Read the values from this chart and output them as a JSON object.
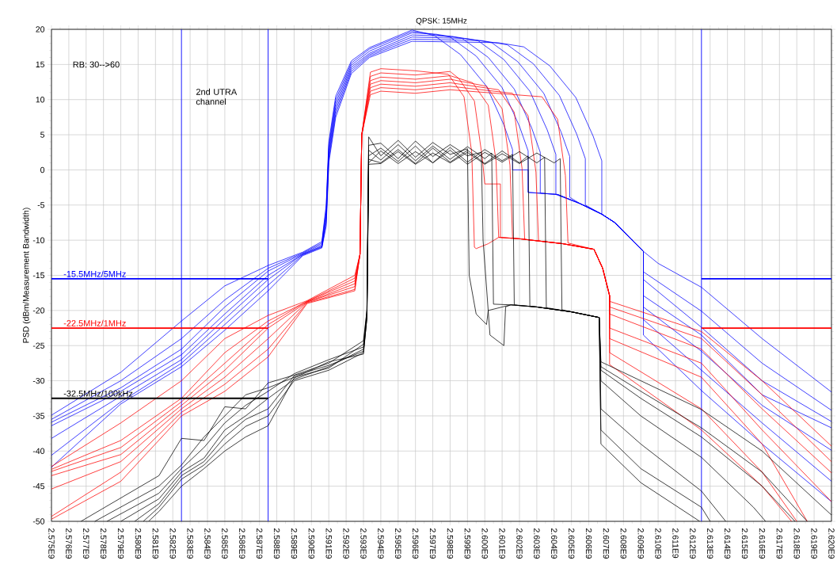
{
  "chart_data": {
    "type": "line",
    "title": "QPSK: 15MHz",
    "ylabel": "PSD (dBm/Measurement Bandwidth)",
    "annotations": [
      "RB: 30-->60",
      "2nd UTRA channel"
    ],
    "xlim": [
      2575000000,
      2620000000
    ],
    "ylim": [
      -50,
      20
    ],
    "xticks": [
      {
        "value": 2575000000,
        "label": "2.575E9"
      },
      {
        "value": 2576000000,
        "label": "2.576E9"
      },
      {
        "value": 2577000000,
        "label": "2.577E9"
      },
      {
        "value": 2578000000,
        "label": "2.578E9"
      },
      {
        "value": 2579000000,
        "label": "2.579E9"
      },
      {
        "value": 2580000000,
        "label": "2.580E9"
      },
      {
        "value": 2581000000,
        "label": "2.581E9"
      },
      {
        "value": 2582000000,
        "label": "2.582E9"
      },
      {
        "value": 2583000000,
        "label": "2.583E9"
      },
      {
        "value": 2584000000,
        "label": "2.584E9"
      },
      {
        "value": 2585000000,
        "label": "2.585E9"
      },
      {
        "value": 2586000000,
        "label": "2.586E9"
      },
      {
        "value": 2587000000,
        "label": "2.587E9"
      },
      {
        "value": 2588000000,
        "label": "2.588E9"
      },
      {
        "value": 2589000000,
        "label": "2.589E9"
      },
      {
        "value": 2590000000,
        "label": "2.590E9"
      },
      {
        "value": 2591000000,
        "label": "2.591E9"
      },
      {
        "value": 2592000000,
        "label": "2.592E9"
      },
      {
        "value": 2593000000,
        "label": "2.593E9"
      },
      {
        "value": 2594000000,
        "label": "2.594E9"
      },
      {
        "value": 2595000000,
        "label": "2.595E9"
      },
      {
        "value": 2596000000,
        "label": "2.596E9"
      },
      {
        "value": 2597000000,
        "label": "2.597E9"
      },
      {
        "value": 2598000000,
        "label": "2.598E9"
      },
      {
        "value": 2599000000,
        "label": "2.599E9"
      },
      {
        "value": 2600000000,
        "label": "2.600E9"
      },
      {
        "value": 2601000000,
        "label": "2.601E9"
      },
      {
        "value": 2602000000,
        "label": "2.602E9"
      },
      {
        "value": 2603000000,
        "label": "2.603E9"
      },
      {
        "value": 2604000000,
        "label": "2.604E9"
      },
      {
        "value": 2605000000,
        "label": "2.605E9"
      },
      {
        "value": 2606000000,
        "label": "2.606E9"
      },
      {
        "value": 2607000000,
        "label": "2.607E9"
      },
      {
        "value": 2608000000,
        "label": "2.608E9"
      },
      {
        "value": 2609000000,
        "label": "2.609E9"
      },
      {
        "value": 2610000000,
        "label": "2.610E9"
      },
      {
        "value": 2611000000,
        "label": "2.611E9"
      },
      {
        "value": 2612000000,
        "label": "2.612E9"
      },
      {
        "value": 2613000000,
        "label": "2.613E9"
      },
      {
        "value": 2614000000,
        "label": "2.614E9"
      },
      {
        "value": 2615000000,
        "label": "2.615E9"
      },
      {
        "value": 2616000000,
        "label": "2.616E9"
      },
      {
        "value": 2617000000,
        "label": "2.617E9"
      },
      {
        "value": 2618000000,
        "label": "2.618E9"
      },
      {
        "value": 2619000000,
        "label": "2.619E9"
      },
      {
        "value": 2620000000,
        "label": "2.620E9"
      }
    ],
    "yticks": [
      -50,
      -45,
      -40,
      -35,
      -30,
      -25,
      -20,
      -15,
      -10,
      -5,
      0,
      5,
      10,
      15,
      20
    ],
    "grid": true,
    "ref_lines": [
      {
        "axis": "x",
        "value": 2582500000,
        "color": "#0000ff"
      },
      {
        "axis": "x",
        "value": 2587500000,
        "color": "#0000ff"
      },
      {
        "axis": "x",
        "value": 2612500000,
        "color": "#0000ff"
      }
    ],
    "series": [
      {
        "color": "#0000ff",
        "x": [
          2575000000,
          2579000000,
          2582500000,
          2585000000,
          2587500000,
          2589500000,
          2590600000,
          2590850000,
          2591000000,
          2591400000,
          2592300000,
          2593350000,
          2595800000,
          2597100000,
          2598600000,
          2600100000,
          2601100000,
          2601600000,
          2601600000,
          2602500000,
          2602500000,
          2604200000,
          2605500000,
          2606750000,
          2607500000,
          2608500000,
          2609150000,
          2610000000,
          2612500000,
          2616000000,
          2620000000
        ],
        "values": [
          -34.9,
          -28.8,
          -21.5,
          -16.5,
          -13.6,
          -11.7,
          -10.2,
          -5,
          4,
          10.5,
          15.5,
          17.4,
          19.9,
          19.1,
          16.4,
          11.9,
          6.4,
          2.9,
          0,
          0,
          -3.2,
          -3.5,
          -4.8,
          -6.3,
          -7.5,
          -10,
          -11.6,
          -13.3,
          -16.7,
          -24,
          -31.6
        ]
      },
      {
        "color": "#0000ff",
        "x": [
          2575000000,
          2579000000,
          2582500000,
          2585000000,
          2587500000,
          2589500000,
          2590600000,
          2590850000,
          2591000000,
          2591400000,
          2592300000,
          2593350000,
          2595800000,
          2596500000,
          2598000000,
          2599500000,
          2601000000,
          2602000000,
          2602500000,
          2602500000,
          2604200000,
          2605500000,
          2606750000,
          2607500000,
          2608500000,
          2609150000,
          2609150000,
          2612500000,
          2616000000,
          2620000000
        ],
        "values": [
          -35.5,
          -30,
          -24,
          -18.5,
          -14,
          -11.8,
          -10.4,
          -5.5,
          3.5,
          10,
          15.2,
          17.2,
          19.7,
          19.5,
          18.9,
          16.2,
          11.7,
          6.2,
          2.7,
          -3.2,
          -3.5,
          -4.8,
          -6.3,
          -7.5,
          -10,
          -11.6,
          -14.5,
          -20.1,
          -27.5,
          -34.2
        ]
      },
      {
        "color": "#0000ff",
        "x": [
          2575000000,
          2579000000,
          2582500000,
          2585000000,
          2587500000,
          2589500000,
          2590600000,
          2590850000,
          2591000000,
          2591400000,
          2592300000,
          2593350000,
          2595800000,
          2597200000,
          2598700000,
          2600200000,
          2601700000,
          2602700000,
          2603200000,
          2603200000,
          2604200000,
          2605500000,
          2606750000,
          2607500000,
          2608500000,
          2609150000,
          2609150000,
          2612500000,
          2616000000,
          2620000000
        ],
        "values": [
          -35.9,
          -31,
          -25.5,
          -19.5,
          -14.4,
          -11.9,
          -10.6,
          -6,
          3,
          9.5,
          14.9,
          16.9,
          19.5,
          19.3,
          18.7,
          16,
          11.5,
          6,
          2.5,
          -3.3,
          -3.5,
          -4.8,
          -6.3,
          -7.5,
          -10,
          -11.6,
          -15.6,
          -22.4,
          -30,
          -35.8
        ]
      },
      {
        "color": "#0000ff",
        "x": [
          2575000000,
          2579000000,
          2582500000,
          2585000000,
          2587500000,
          2589500000,
          2590600000,
          2590850000,
          2591000000,
          2591400000,
          2592300000,
          2593350000,
          2595800000,
          2598100000,
          2599600000,
          2601100000,
          2602600000,
          2603600000,
          2604100000,
          2604100000,
          2605500000,
          2606750000,
          2607500000,
          2608500000,
          2609150000,
          2609150000,
          2612500000,
          2616000000,
          2620000000
        ],
        "values": [
          -36.4,
          -31.5,
          -26.3,
          -20.5,
          -15,
          -12,
          -10.8,
          -6.5,
          2.5,
          9,
          14.6,
          16.6,
          19.2,
          19,
          18.4,
          15.7,
          11.2,
          5.7,
          2.2,
          -3.5,
          -4.8,
          -6.3,
          -7.5,
          -10,
          -11.6,
          -17.9,
          -23.5,
          -32,
          -36.7
        ]
      },
      {
        "color": "#0000ff",
        "x": [
          2575000000,
          2579000000,
          2582500000,
          2585000000,
          2587500000,
          2589500000,
          2590600000,
          2590850000,
          2591000000,
          2591400000,
          2592300000,
          2593350000,
          2595800000,
          2598900000,
          2600400000,
          2601900000,
          2603400000,
          2604400000,
          2604900000,
          2604900000,
          2605500000,
          2606750000,
          2607500000,
          2608500000,
          2609150000,
          2609150000,
          2612500000,
          2616000000,
          2620000000
        ],
        "values": [
          -38.2,
          -32.2,
          -27,
          -21.2,
          -15.6,
          -12,
          -10.9,
          -7,
          2,
          8.5,
          14.3,
          16.4,
          18.9,
          18.7,
          18.1,
          15.4,
          10.9,
          5.4,
          1.9,
          -3.9,
          -4.8,
          -6.3,
          -7.5,
          -10,
          -11.6,
          -19.5,
          -25.8,
          -33.5,
          -39.9
        ]
      },
      {
        "color": "#0000ff",
        "x": [
          2575000000,
          2579000000,
          2582500000,
          2585000000,
          2587500000,
          2589500000,
          2590600000,
          2590850000,
          2591000000,
          2591400000,
          2592300000,
          2593350000,
          2595800000,
          2599800000,
          2601300000,
          2602800000,
          2604300000,
          2605300000,
          2605800000,
          2605800000,
          2606750000,
          2607500000,
          2608500000,
          2609150000,
          2609150000,
          2612500000,
          2616000000,
          2620000000
        ],
        "values": [
          -40.6,
          -33,
          -27.5,
          -22,
          -16.4,
          -12.1,
          -11,
          -7.5,
          1.5,
          8,
          14,
          16.2,
          18.6,
          18.4,
          17.8,
          15.1,
          10.6,
          5.1,
          1.6,
          -5,
          -6.3,
          -7.5,
          -10,
          -11.6,
          -21.3,
          -28.5,
          -36,
          -44.3
        ]
      },
      {
        "color": "#0000ff",
        "x": [
          2575000000,
          2579000000,
          2582500000,
          2585000000,
          2587500000,
          2589500000,
          2590600000,
          2590850000,
          2591000000,
          2591400000,
          2592300000,
          2593350000,
          2595800000,
          2600750000,
          2602250000,
          2603750000,
          2605250000,
          2606250000,
          2606750000,
          2606750000,
          2607500000,
          2608500000,
          2609150000,
          2609150000,
          2612500000,
          2616000000,
          2620000000
        ],
        "values": [
          -42.3,
          -33.3,
          -28,
          -22.8,
          -17.2,
          -12.2,
          -11.1,
          -8,
          1,
          7.5,
          13.7,
          16,
          18.3,
          18.1,
          17.5,
          14.8,
          10.3,
          4.8,
          1.3,
          -6.3,
          -7.5,
          -10,
          -11.6,
          -23.5,
          -31.4,
          -39,
          -47.2
        ]
      },
      {
        "color": "#ff0000",
        "x": [
          2575000000,
          2579000000,
          2582500000,
          2585000000,
          2587500000,
          2589750000,
          2592500000,
          2592800000,
          2592900000,
          2593400000,
          2594000000,
          2596000000,
          2597900000,
          2598800000,
          2599250000,
          2599400000,
          2599500000,
          2600200000,
          2600800000,
          2602000000,
          2604500000,
          2606300000,
          2606800000,
          2607200000,
          2607200000,
          2612500000,
          2616000000,
          2620000000
        ],
        "values": [
          -42.2,
          -36,
          -30,
          -24,
          -20.7,
          -18.6,
          -15,
          -12,
          5,
          13.9,
          14.4,
          14.1,
          13.6,
          10.4,
          2.4,
          -11,
          -11.2,
          -10.5,
          -9.6,
          -9.8,
          -10.5,
          -11.3,
          -14,
          -17.9,
          -18.7,
          -23,
          -30,
          -39.3
        ]
      },
      {
        "color": "#ff0000",
        "x": [
          2575000000,
          2579000000,
          2582500000,
          2585000000,
          2587500000,
          2589750000,
          2592500000,
          2592800000,
          2592900000,
          2593400000,
          2594000000,
          2596000000,
          2598000000,
          2598500000,
          2599400000,
          2599850000,
          2600000000,
          2600900000,
          2600900000,
          2602000000,
          2604500000,
          2606300000,
          2606800000,
          2607200000,
          2607200000,
          2612500000,
          2616000000,
          2620000000
        ],
        "values": [
          -42.6,
          -38.5,
          -32.5,
          -26,
          -21.5,
          -18.7,
          -15.4,
          -12,
          5,
          13.3,
          13.8,
          13.5,
          14,
          13,
          9.8,
          1.8,
          -2,
          -2,
          -9.6,
          -9.8,
          -10.5,
          -11.3,
          -14,
          -17.9,
          -19.5,
          -24,
          -32,
          -41.5
        ]
      },
      {
        "color": "#ff0000",
        "x": [
          2575000000,
          2579000000,
          2582500000,
          2585000000,
          2587500000,
          2589750000,
          2592500000,
          2592800000,
          2592900000,
          2593400000,
          2594000000,
          2596000000,
          2598000000,
          2599300000,
          2600200000,
          2600650000,
          2600800000,
          2602000000,
          2604500000,
          2606300000,
          2606800000,
          2607200000,
          2607200000,
          2612500000,
          2616000000,
          2620000000
        ],
        "values": [
          -42.9,
          -39.5,
          -33,
          -27.5,
          -22,
          -18.7,
          -15.8,
          -12,
          5,
          12.7,
          13.2,
          12.9,
          13.4,
          12.4,
          9.2,
          1.2,
          -9.6,
          -9.8,
          -10.5,
          -11.3,
          -14,
          -17.9,
          -20.5,
          -25.5,
          -34,
          -43.1
        ]
      },
      {
        "color": "#ff0000",
        "x": [
          2575000000,
          2579000000,
          2582500000,
          2585000000,
          2587500000,
          2589750000,
          2592500000,
          2592800000,
          2592900000,
          2593400000,
          2594000000,
          2596000000,
          2598000000,
          2600100000,
          2601000000,
          2601450000,
          2601600000,
          2602000000,
          2604500000,
          2606300000,
          2606800000,
          2607200000,
          2607200000,
          2612500000,
          2616000000,
          2620000000
        ],
        "values": [
          -43.5,
          -40.5,
          -33.5,
          -28.5,
          -22.5,
          -18.8,
          -16.2,
          -12,
          5,
          12.2,
          12.7,
          12.4,
          12.9,
          11.9,
          8.7,
          0.7,
          -9.7,
          -9.8,
          -10.5,
          -11.3,
          -14,
          -17.9,
          -22.5,
          -27.5,
          -37,
          -47.2
        ]
      },
      {
        "color": "#ff0000",
        "x": [
          2575000000,
          2579000000,
          2582500000,
          2585000000,
          2587500000,
          2589750000,
          2592500000,
          2592800000,
          2592900000,
          2593400000,
          2594000000,
          2596000000,
          2598000000,
          2600800000,
          2601700000,
          2602150000,
          2602300000,
          2604500000,
          2606300000,
          2606800000,
          2607200000,
          2607200000,
          2612500000,
          2616000000,
          2618600000
        ],
        "values": [
          -45.4,
          -41.5,
          -34,
          -29.5,
          -24,
          -18.8,
          -16.6,
          -12,
          5,
          11.7,
          12.2,
          11.9,
          12.4,
          11.4,
          8.2,
          0.2,
          -9.9,
          -10.5,
          -11.3,
          -14,
          -17.9,
          -24,
          -29.5,
          -39,
          -50
        ]
      },
      {
        "color": "#ff0000",
        "x": [
          2575000000,
          2579000000,
          2582500000,
          2585000000,
          2587500000,
          2589750000,
          2592500000,
          2592800000,
          2592900000,
          2593400000,
          2594000000,
          2596000000,
          2598000000,
          2601600000,
          2602500000,
          2602950000,
          2603100000,
          2604500000,
          2606300000,
          2606800000,
          2607200000,
          2607200000,
          2612500000,
          2616000000,
          2618000000
        ],
        "values": [
          -49.3,
          -43,
          -34.5,
          -30.5,
          -25.5,
          -18.9,
          -17,
          -12,
          5,
          11.2,
          11.7,
          11.4,
          11.9,
          10.9,
          7.7,
          -0.3,
          -10.1,
          -10.5,
          -11.3,
          -14,
          -17.9,
          -26,
          -34,
          -43,
          -50
        ]
      },
      {
        "color": "#ff0000",
        "x": [
          2575000000,
          2579000000,
          2582500000,
          2585000000,
          2587500000,
          2589750000,
          2592500000,
          2592800000,
          2592900000,
          2593400000,
          2594000000,
          2596000000,
          2598000000,
          2603300000,
          2604200000,
          2604650000,
          2604800000,
          2606300000,
          2606800000,
          2607200000,
          2607200000,
          2612500000,
          2616000000,
          2617700000
        ],
        "values": [
          -49.7,
          -44.3,
          -35,
          -31.5,
          -26.6,
          -19,
          -17.2,
          -12,
          5,
          10.7,
          11.2,
          10.9,
          11.4,
          10.4,
          7.2,
          -0.8,
          -10.4,
          -11.3,
          -14,
          -17.9,
          -27.7,
          -37,
          -45,
          -50
        ]
      },
      {
        "color": "#000000",
        "x": [
          2576700000,
          2581200000,
          2582500000,
          2583800000,
          2585000000,
          2586200000,
          2587500000,
          2589000000,
          2591000000,
          2593000000,
          2593200000,
          2593300000,
          2594000000,
          2595000000,
          2596000000,
          2597000000,
          2598000000,
          2599000000,
          2599100000,
          2599500000,
          2600100000,
          2600200000,
          2601500000,
          2603000000,
          2605000000,
          2606600000,
          2606700000,
          2609000000,
          2612500000,
          2616000000,
          2620000000
        ],
        "values": [
          -50,
          -43.5,
          -38.2,
          -38.5,
          -33.7,
          -34,
          -30.3,
          -29.2,
          -27.5,
          -24.3,
          -20,
          4.7,
          2,
          4.2,
          1.8,
          3.9,
          2.2,
          3,
          -15,
          -20.5,
          -22,
          -20,
          -19.2,
          -19.5,
          -20.2,
          -21,
          -27.3,
          -30,
          -34.1,
          -40,
          -49.1
        ]
      },
      {
        "color": "#000000",
        "x": [
          2577500000,
          2581200000,
          2582500000,
          2583800000,
          2585000000,
          2586200000,
          2587500000,
          2589000000,
          2591000000,
          2593000000,
          2593200000,
          2593300000,
          2594000000,
          2595000000,
          2596000000,
          2597000000,
          2598000000,
          2599000000,
          2599800000,
          2599900000,
          2600300000,
          2601100000,
          2601200000,
          2601500000,
          2603000000,
          2605000000,
          2606600000,
          2606700000,
          2609000000,
          2612500000,
          2616000000,
          2618600000
        ],
        "values": [
          -50,
          -45,
          -42,
          -38,
          -35,
          -32,
          -31,
          -29.5,
          -28.2,
          -24.8,
          -20,
          3.5,
          3.8,
          1.6,
          4.1,
          1.9,
          3.6,
          2,
          2.5,
          -10,
          -23.5,
          -25,
          -19.5,
          -19.2,
          -19.5,
          -20.2,
          -21,
          -28,
          -31.5,
          -36.7,
          -43,
          -50
        ]
      },
      {
        "color": "#000000",
        "x": [
          2578200000,
          2581200000,
          2582500000,
          2583800000,
          2585000000,
          2586200000,
          2587500000,
          2589000000,
          2591000000,
          2593000000,
          2593200000,
          2593300000,
          2594000000,
          2595000000,
          2596000000,
          2597000000,
          2598000000,
          2599000000,
          2600000000,
          2600400000,
          2600500000,
          2601500000,
          2603000000,
          2605000000,
          2606600000,
          2606700000,
          2609000000,
          2612500000,
          2616000000,
          2617900000
        ],
        "values": [
          -50,
          -46,
          -42.5,
          -39.5,
          -36,
          -33.5,
          -31.5,
          -29,
          -27,
          -25.2,
          -20.5,
          2.8,
          1.4,
          3.6,
          1.3,
          3.4,
          1.5,
          3.3,
          1.6,
          2.4,
          -19.1,
          -19.2,
          -19.5,
          -20.2,
          -21,
          -28.5,
          -32.5,
          -38,
          -45,
          -50
        ]
      },
      {
        "color": "#000000",
        "x": [
          2579000000,
          2581200000,
          2582500000,
          2583800000,
          2585000000,
          2586200000,
          2587500000,
          2589000000,
          2591000000,
          2593000000,
          2593200000,
          2593300000,
          2594000000,
          2595000000,
          2596000000,
          2597000000,
          2598000000,
          2599000000,
          2600000000,
          2601000000,
          2601600000,
          2601700000,
          2603000000,
          2605000000,
          2606600000,
          2606700000,
          2609000000,
          2612500000,
          2615500000,
          2616200000
        ],
        "values": [
          -50,
          -46.8,
          -43,
          -41,
          -37,
          -35,
          -32.5,
          -29.8,
          -28,
          -25.5,
          -20.5,
          2,
          3.1,
          1.2,
          3.4,
          1,
          3.2,
          1.1,
          2.9,
          1.3,
          2.2,
          -19.2,
          -19.5,
          -20.2,
          -21,
          -30,
          -35,
          -40.9,
          -48,
          -50
        ]
      },
      {
        "color": "#000000",
        "x": [
          2579800000,
          2581200000,
          2582500000,
          2583800000,
          2585000000,
          2586200000,
          2587500000,
          2589000000,
          2591000000,
          2593000000,
          2593200000,
          2593300000,
          2594000000,
          2595000000,
          2596000000,
          2597000000,
          2598000000,
          2599000000,
          2600000000,
          2601000000,
          2602000000,
          2602500000,
          2602600000,
          2603000000,
          2605000000,
          2606600000,
          2606700000,
          2609000000,
          2612500000,
          2613900000
        ],
        "values": [
          -50,
          -47.5,
          -43.5,
          -41.5,
          -38,
          -35.5,
          -34,
          -29.3,
          -27.8,
          -25.8,
          -21,
          1.5,
          1,
          2.9,
          0.9,
          3.1,
          1.1,
          2.8,
          0.9,
          2.7,
          1,
          2,
          -19.4,
          -19.5,
          -20.2,
          -21,
          -34,
          -39,
          -45.7,
          -50
        ]
      },
      {
        "color": "#000000",
        "x": [
          2580300000,
          2581200000,
          2582500000,
          2583800000,
          2585000000,
          2586200000,
          2587500000,
          2589000000,
          2591000000,
          2593000000,
          2593200000,
          2593300000,
          2594000000,
          2595000000,
          2596000000,
          2597000000,
          2598000000,
          2599000000,
          2600000000,
          2601000000,
          2602000000,
          2603000000,
          2603450000,
          2603550000,
          2605000000,
          2606600000,
          2606700000,
          2609000000,
          2612500000,
          2613000000
        ],
        "values": [
          -50,
          -48,
          -44,
          -42,
          -39,
          -36.5,
          -35,
          -30,
          -28.5,
          -26,
          -21,
          1,
          2.7,
          0.9,
          2.6,
          1,
          2.8,
          0.8,
          2.5,
          1.1,
          2.6,
          1,
          1.8,
          -19.6,
          -20.2,
          -21,
          -37,
          -42.5,
          -48,
          -50
        ]
      },
      {
        "color": "#000000",
        "x": [
          2580600000,
          2581200000,
          2582500000,
          2583800000,
          2585000000,
          2586200000,
          2587500000,
          2589000000,
          2591000000,
          2593000000,
          2593200000,
          2593300000,
          2594000000,
          2595000000,
          2596000000,
          2597000000,
          2598000000,
          2599000000,
          2600000000,
          2601000000,
          2602000000,
          2603000000,
          2604000000,
          2604350000,
          2604450000,
          2605000000,
          2606600000,
          2606700000,
          2609000000,
          2612400000
        ],
        "values": [
          -50,
          -48.6,
          -45,
          -42.5,
          -40,
          -38,
          -36.4,
          -29.6,
          -27.3,
          -26.2,
          -21,
          0.8,
          0.9,
          2.6,
          0.8,
          2.4,
          1,
          2.5,
          0.8,
          2.3,
          0.9,
          2.4,
          1,
          1.6,
          -19.9,
          -20.2,
          -21,
          -39,
          -44.5,
          -50
        ]
      },
      {
        "name": "-15.5MHz/5MHz",
        "color": "#0000ff",
        "x": [
          2575000000,
          2587500000,
          2600000000,
          2612500000,
          2620000000
        ],
        "values": [
          -15.5,
          -15.5,
          null,
          -15.5,
          -15.5
        ]
      },
      {
        "name": "-22.5MHz/1MHz",
        "color": "#ff0000",
        "x": [
          2575000000,
          2587500000,
          2600000000,
          2612500000,
          2620000000
        ],
        "values": [
          -22.5,
          -22.5,
          null,
          -22.5,
          -22.5
        ]
      },
      {
        "name": "-32.5MHz/100kHz",
        "color": "#000000",
        "x": [
          2575000000,
          2587500000
        ],
        "values": [
          -32.5,
          -32.5
        ]
      }
    ]
  }
}
